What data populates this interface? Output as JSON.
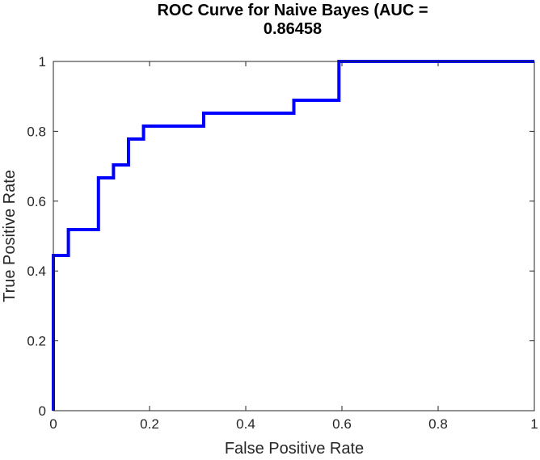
{
  "chart_data": {
    "type": "line",
    "title_lines": [
      "ROC Curve for Naive Bayes (AUC =",
      "0.86458"
    ],
    "xlabel": "False Positive Rate",
    "ylabel": "True Positive Rate",
    "xlim": [
      0,
      1
    ],
    "ylim": [
      0,
      1
    ],
    "xticks": [
      0,
      0.2,
      0.4,
      0.6,
      0.8,
      1
    ],
    "yticks": [
      0,
      0.2,
      0.4,
      0.6,
      0.8,
      1
    ],
    "xtick_labels": [
      "0",
      "0.2",
      "0.4",
      "0.6",
      "0.8",
      "1"
    ],
    "ytick_labels": [
      "0",
      "0.2",
      "0.4",
      "0.6",
      "0.8",
      "1"
    ],
    "grid": false,
    "series": [
      {
        "color": "#0000ff",
        "points": [
          [
            0,
            0
          ],
          [
            0,
            0.4444
          ],
          [
            0.03125,
            0.4444
          ],
          [
            0.03125,
            0.5185
          ],
          [
            0.09375,
            0.5185
          ],
          [
            0.09375,
            0.6667
          ],
          [
            0.125,
            0.6667
          ],
          [
            0.125,
            0.7037
          ],
          [
            0.15625,
            0.7037
          ],
          [
            0.15625,
            0.7778
          ],
          [
            0.1875,
            0.7778
          ],
          [
            0.1875,
            0.8148
          ],
          [
            0.3125,
            0.8148
          ],
          [
            0.3125,
            0.8519
          ],
          [
            0.5,
            0.8519
          ],
          [
            0.5,
            0.8889
          ],
          [
            0.59375,
            0.8889
          ],
          [
            0.59375,
            1
          ],
          [
            1,
            1
          ]
        ]
      }
    ]
  }
}
